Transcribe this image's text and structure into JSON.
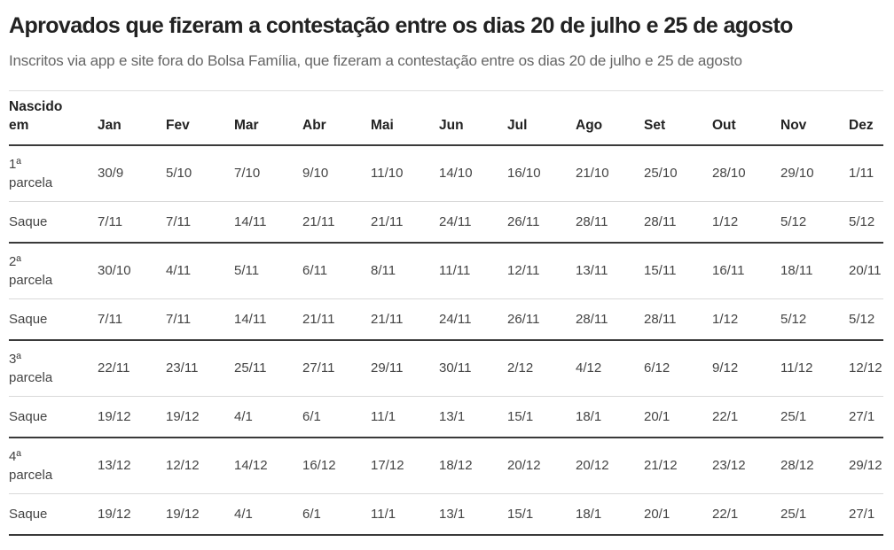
{
  "page": {
    "title": "Aprovados que fizeram a contestação entre os dias 20 de julho e 25 de agosto",
    "subtitle": "Inscritos via app e site fora do Bolsa Família, que fizeram a contestação entre os dias 20 de julho e 25 de agosto"
  },
  "colors": {
    "title_text": "#222222",
    "subtitle_text": "#666666",
    "cell_text": "#444444",
    "dark_rule": "#3a3a3a",
    "light_rule": "#d9d9d9",
    "background": "#ffffff"
  },
  "chart_data": {
    "type": "table",
    "title": "Aprovados que fizeram a contestação entre os dias 20 de julho e 25 de agosto",
    "subtitle": "Inscritos via app e site fora do Bolsa Família, que fizeram a contestação entre os dias 20 de julho e 25 de agosto",
    "row_header_label": "Nascido em",
    "columns": [
      "Jan",
      "Fev",
      "Mar",
      "Abr",
      "Mai",
      "Jun",
      "Jul",
      "Ago",
      "Set",
      "Out",
      "Nov",
      "Dez"
    ],
    "rows": [
      {
        "label": "1ª parcela",
        "type": "parcela",
        "values": [
          "30/9",
          "5/10",
          "7/10",
          "9/10",
          "11/10",
          "14/10",
          "16/10",
          "21/10",
          "25/10",
          "28/10",
          "29/10",
          "1/11"
        ]
      },
      {
        "label": "Saque",
        "type": "saque",
        "values": [
          "7/11",
          "7/11",
          "14/11",
          "21/11",
          "21/11",
          "24/11",
          "26/11",
          "28/11",
          "28/11",
          "1/12",
          "5/12",
          "5/12"
        ]
      },
      {
        "label": "2ª parcela",
        "type": "parcela",
        "values": [
          "30/10",
          "4/11",
          "5/11",
          "6/11",
          "8/11",
          "11/11",
          "12/11",
          "13/11",
          "15/11",
          "16/11",
          "18/11",
          "20/11"
        ]
      },
      {
        "label": "Saque",
        "type": "saque",
        "values": [
          "7/11",
          "7/11",
          "14/11",
          "21/11",
          "21/11",
          "24/11",
          "26/11",
          "28/11",
          "28/11",
          "1/12",
          "5/12",
          "5/12"
        ]
      },
      {
        "label": "3ª parcela",
        "type": "parcela",
        "values": [
          "22/11",
          "23/11",
          "25/11",
          "27/11",
          "29/11",
          "30/11",
          "2/12",
          "4/12",
          "6/12",
          "9/12",
          "11/12",
          "12/12"
        ]
      },
      {
        "label": "Saque",
        "type": "saque",
        "values": [
          "19/12",
          "19/12",
          "4/1",
          "6/1",
          "11/1",
          "13/1",
          "15/1",
          "18/1",
          "20/1",
          "22/1",
          "25/1",
          "27/1"
        ]
      },
      {
        "label": "4ª parcela",
        "type": "parcela",
        "values": [
          "13/12",
          "12/12",
          "14/12",
          "16/12",
          "17/12",
          "18/12",
          "20/12",
          "20/12",
          "21/12",
          "23/12",
          "28/12",
          "29/12"
        ]
      },
      {
        "label": "Saque",
        "type": "saque",
        "values": [
          "19/12",
          "19/12",
          "4/1",
          "6/1",
          "11/1",
          "13/1",
          "15/1",
          "18/1",
          "20/1",
          "22/1",
          "25/1",
          "27/1"
        ]
      }
    ]
  }
}
